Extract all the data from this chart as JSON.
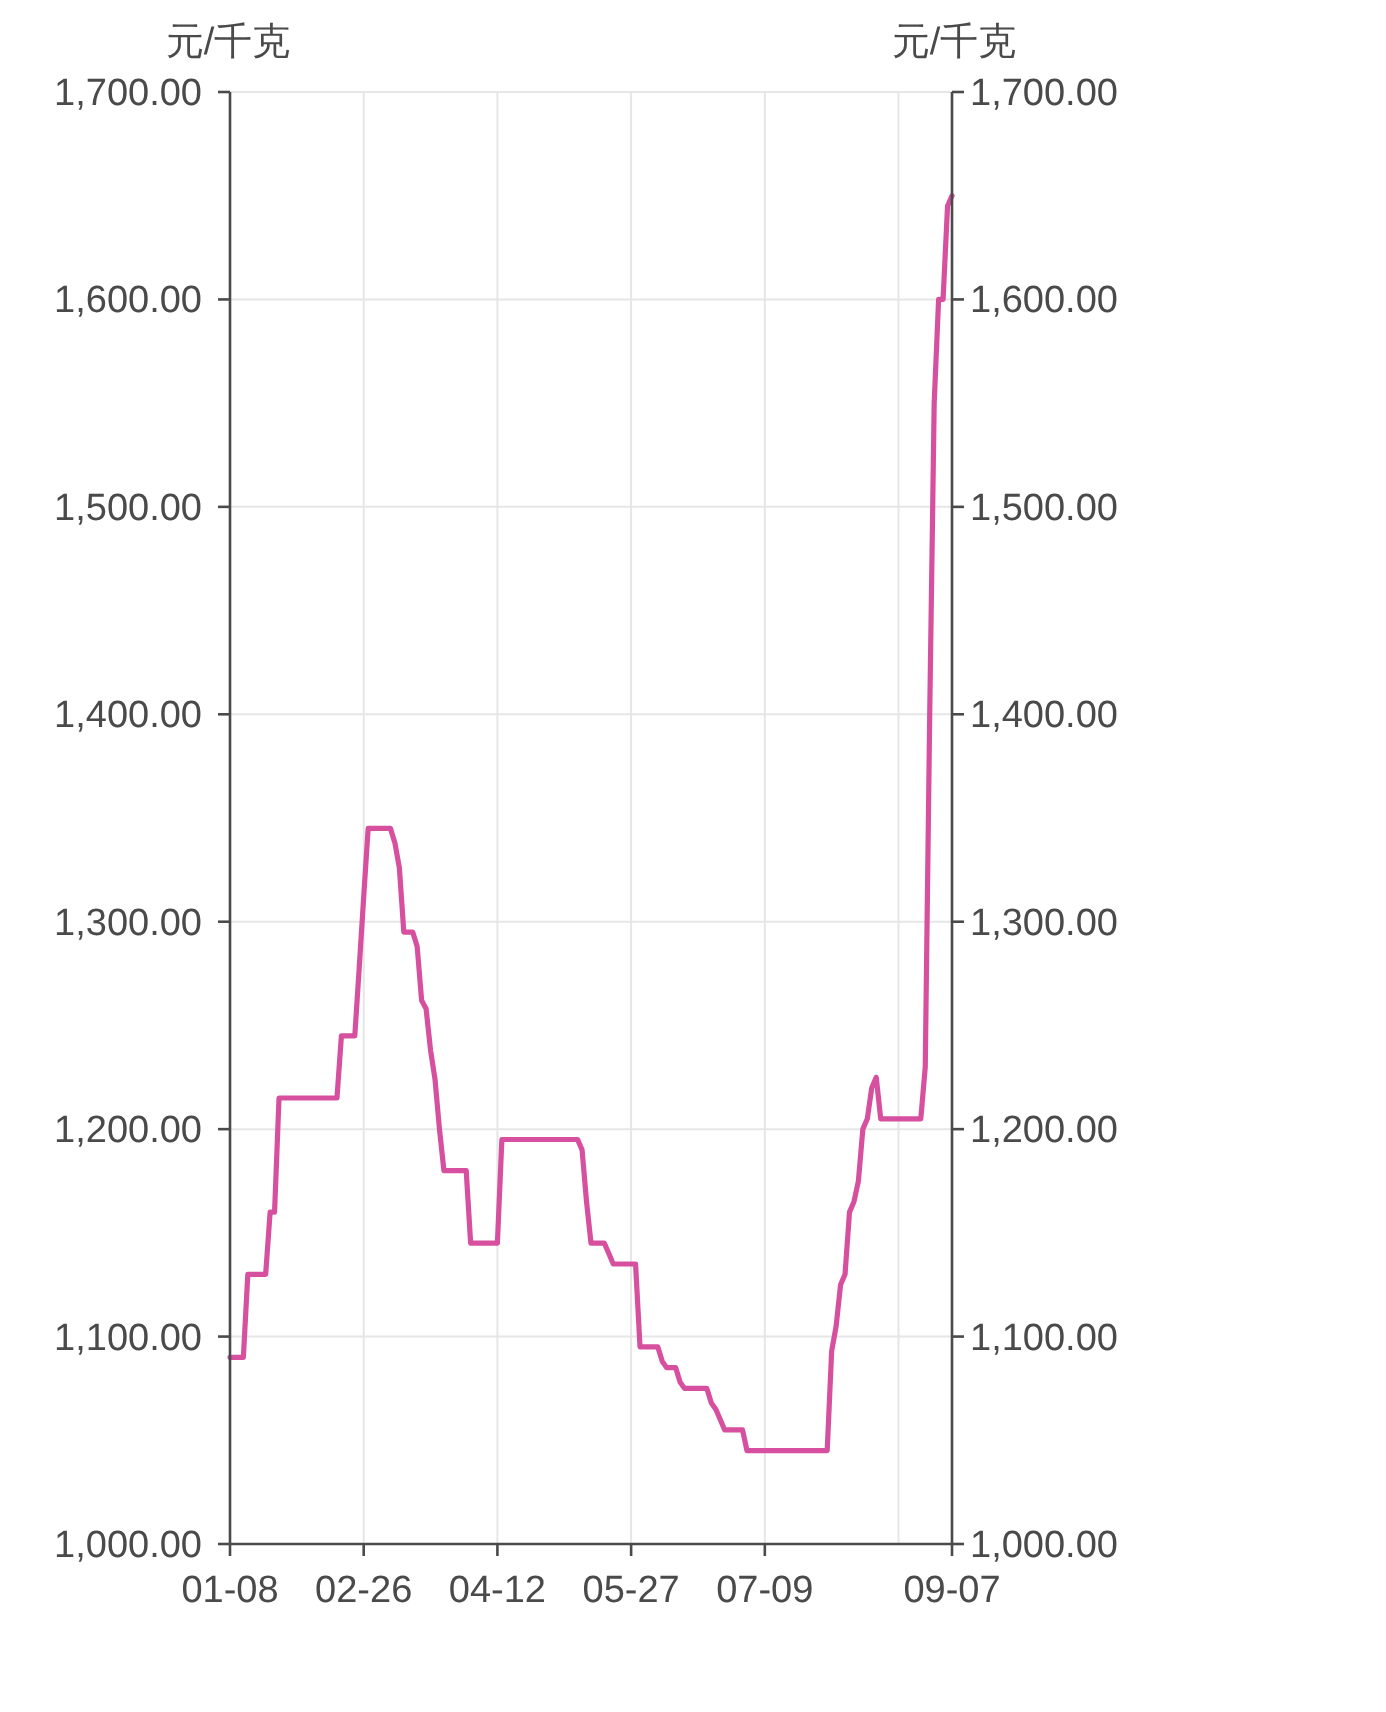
{
  "chart_data": {
    "type": "line",
    "ylabel": "元/千克",
    "y2label": "元/千克",
    "categories": [
      "01-08",
      null,
      null,
      null,
      null,
      null,
      null,
      null,
      null,
      null,
      null,
      null,
      null,
      null,
      null,
      null,
      null,
      null,
      null,
      null,
      null,
      null,
      null,
      null,
      null,
      null,
      null,
      null,
      null,
      null,
      "02-26",
      null,
      null,
      null,
      null,
      null,
      null,
      null,
      null,
      null,
      null,
      null,
      null,
      null,
      null,
      null,
      null,
      null,
      null,
      null,
      null,
      null,
      null,
      null,
      null,
      null,
      null,
      null,
      null,
      null,
      "04-12",
      null,
      null,
      null,
      null,
      null,
      null,
      null,
      null,
      null,
      null,
      null,
      null,
      null,
      null,
      null,
      null,
      null,
      null,
      null,
      null,
      null,
      null,
      null,
      null,
      null,
      null,
      null,
      null,
      null,
      "05-27",
      null,
      null,
      null,
      null,
      null,
      null,
      null,
      null,
      null,
      null,
      null,
      null,
      null,
      null,
      null,
      null,
      null,
      null,
      null,
      null,
      null,
      null,
      null,
      null,
      null,
      null,
      null,
      null,
      null,
      "07-09",
      null,
      null,
      null,
      null,
      null,
      null,
      null,
      null,
      null,
      null,
      null,
      null,
      null,
      null,
      null,
      null,
      null,
      null,
      null,
      null,
      null,
      null,
      null,
      null,
      null,
      null,
      null,
      null,
      null,
      null,
      null,
      null,
      null,
      null,
      null,
      null,
      null,
      null,
      null,
      null,
      null,
      "09-07"
    ],
    "series": [
      {
        "color": "#d6509f",
        "values": [
          1090,
          1090,
          1090,
          1090,
          1130,
          1130,
          1130,
          1130,
          1130,
          1160,
          1160,
          1215,
          1215,
          1215,
          1215,
          1215,
          1215,
          1215,
          1215,
          1215,
          1215,
          1215,
          1215,
          1215,
          1215,
          1245,
          1245,
          1245,
          1245,
          1278,
          1312,
          1345,
          1345,
          1345,
          1345,
          1345,
          1345,
          1338,
          1326,
          1295,
          1295,
          1295,
          1288,
          1262,
          1258,
          1238,
          1224,
          1200,
          1180,
          1180,
          1180,
          1180,
          1180,
          1180,
          1145,
          1145,
          1145,
          1145,
          1145,
          1145,
          1145,
          1195,
          1195,
          1195,
          1195,
          1195,
          1195,
          1195,
          1195,
          1195,
          1195,
          1195,
          1195,
          1195,
          1195,
          1195,
          1195,
          1195,
          1195,
          1190,
          1165,
          1145,
          1145,
          1145,
          1145,
          1140,
          1135,
          1135,
          1135,
          1135,
          1135,
          1135,
          1095,
          1095,
          1095,
          1095,
          1095,
          1088,
          1085,
          1085,
          1085,
          1078,
          1075,
          1075,
          1075,
          1075,
          1075,
          1075,
          1068,
          1065,
          1060,
          1055,
          1055,
          1055,
          1055,
          1055,
          1045,
          1045,
          1045,
          1045,
          1045,
          1045,
          1045,
          1045,
          1045,
          1045,
          1045,
          1045,
          1045,
          1045,
          1045,
          1045,
          1045,
          1045,
          1045,
          1093,
          1105,
          1125,
          1130,
          1160,
          1165,
          1175,
          1200,
          1205,
          1220,
          1225,
          1205,
          1205,
          1205,
          1205,
          1205,
          1205,
          1205,
          1205,
          1205,
          1205,
          1230,
          1400,
          1550,
          1600,
          1600,
          1645,
          1650
        ]
      }
    ],
    "ylim": [
      1000,
      1700
    ],
    "yticks": [
      {
        "value": 1000,
        "label": "1,000.00"
      },
      {
        "value": 1100,
        "label": "1,100.00"
      },
      {
        "value": 1200,
        "label": "1,200.00"
      },
      {
        "value": 1300,
        "label": "1,300.00"
      },
      {
        "value": 1400,
        "label": "1,400.00"
      },
      {
        "value": 1500,
        "label": "1,500.00"
      },
      {
        "value": 1600,
        "label": "1,600.00"
      },
      {
        "value": 1700,
        "label": "1,700.00"
      }
    ],
    "y2lim": [
      1000,
      1700
    ],
    "y2ticks": [
      {
        "value": 1000,
        "label": "1,000.00"
      },
      {
        "value": 1100,
        "label": "1,100.00"
      },
      {
        "value": 1200,
        "label": "1,200.00"
      },
      {
        "value": 1300,
        "label": "1,300.00"
      },
      {
        "value": 1400,
        "label": "1,400.00"
      },
      {
        "value": 1500,
        "label": "1,500.00"
      },
      {
        "value": 1600,
        "label": "1,600.00"
      },
      {
        "value": 1700,
        "label": "1,700.00"
      }
    ],
    "grid": true
  }
}
